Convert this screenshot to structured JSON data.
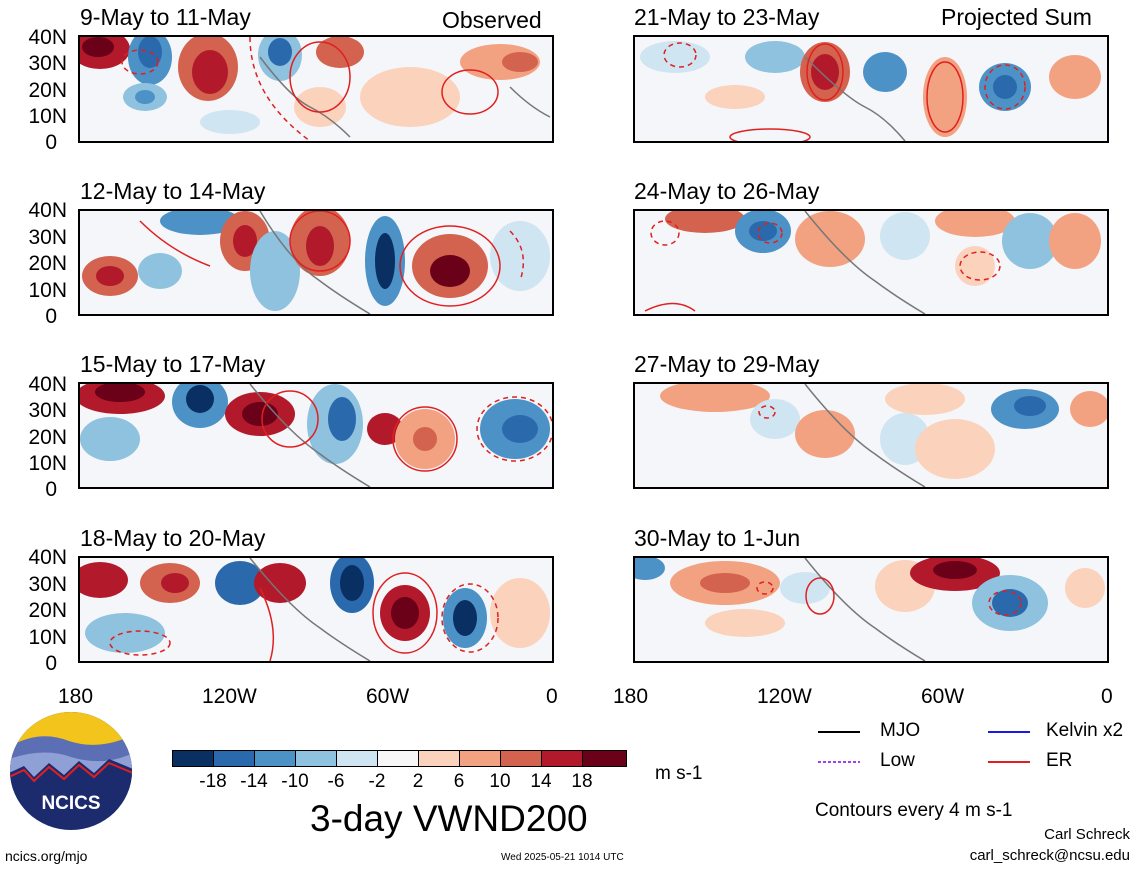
{
  "left_header": "Observed",
  "right_header": "Projected Sum",
  "panels": [
    {
      "title": "9-May to 11-May",
      "col": "left"
    },
    {
      "title": "12-May to 14-May",
      "col": "left"
    },
    {
      "title": "15-May to 17-May",
      "col": "left"
    },
    {
      "title": "18-May to 20-May",
      "col": "left"
    },
    {
      "title": "21-May to 23-May",
      "col": "right"
    },
    {
      "title": "24-May to 26-May",
      "col": "right"
    },
    {
      "title": "27-May to 29-May",
      "col": "right"
    },
    {
      "title": "30-May to 1-Jun",
      "col": "right"
    }
  ],
  "lat_labels": [
    "40N",
    "30N",
    "20N",
    "10N",
    "0"
  ],
  "lon_labels": [
    "180",
    "120W",
    "60W",
    "0"
  ],
  "colorbar": {
    "labels": [
      "-18",
      "-14",
      "-10",
      "-6",
      "-2",
      "2",
      "6",
      "10",
      "14",
      "18"
    ],
    "colors": [
      "#0a2f63",
      "#2b69ad",
      "#4d92c6",
      "#8ec2df",
      "#cfe5f1",
      "#f7f7f7",
      "#fbd2bc",
      "#f2a281",
      "#d3634f",
      "#b21a2c",
      "#6b0019"
    ],
    "units": "m s-1"
  },
  "title": "3-day VWND200",
  "legend": {
    "items": [
      {
        "label": "MJO",
        "color": "#000000",
        "style": "solid"
      },
      {
        "label": "Kelvin x2",
        "color": "#1a1ae6",
        "style": "solid"
      },
      {
        "label": "Low",
        "color": "#a040f0",
        "style": "dotted"
      },
      {
        "label": "ER",
        "color": "#e02020",
        "style": "solid"
      }
    ],
    "contour_note": "Contours every 4 m s-1"
  },
  "logo_text": "NCICS",
  "footer": {
    "url": "ncics.org/mjo",
    "timestamp": "Wed 2025-05-21 1014 UTC",
    "author": "Carl Schreck",
    "email": "carl_schreck@ncsu.edu"
  }
}
